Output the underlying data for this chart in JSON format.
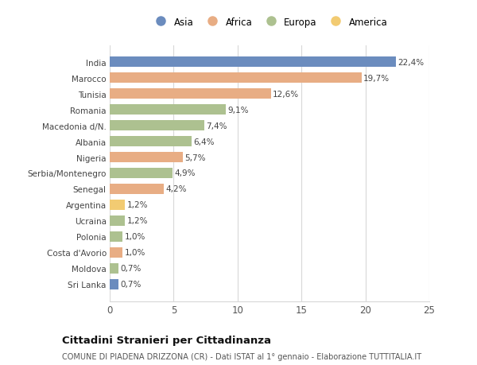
{
  "countries": [
    "India",
    "Marocco",
    "Tunisia",
    "Romania",
    "Macedonia d/N.",
    "Albania",
    "Nigeria",
    "Serbia/Montenegro",
    "Senegal",
    "Argentina",
    "Ucraina",
    "Polonia",
    "Costa d'Avorio",
    "Moldova",
    "Sri Lanka"
  ],
  "values": [
    22.4,
    19.7,
    12.6,
    9.1,
    7.4,
    6.4,
    5.7,
    4.9,
    4.2,
    1.2,
    1.2,
    1.0,
    1.0,
    0.7,
    0.7
  ],
  "labels": [
    "22,4%",
    "19,7%",
    "12,6%",
    "9,1%",
    "7,4%",
    "6,4%",
    "5,7%",
    "4,9%",
    "4,2%",
    "1,2%",
    "1,2%",
    "1,0%",
    "1,0%",
    "0,7%",
    "0,7%"
  ],
  "continents": [
    "Asia",
    "Africa",
    "Africa",
    "Europa",
    "Europa",
    "Europa",
    "Africa",
    "Europa",
    "Africa",
    "America",
    "Europa",
    "Europa",
    "Africa",
    "Europa",
    "Asia"
  ],
  "continent_colors": {
    "Asia": "#6b8cbe",
    "Africa": "#e8ad84",
    "Europa": "#adc190",
    "America": "#f2cb72"
  },
  "legend_order": [
    "Asia",
    "Africa",
    "Europa",
    "America"
  ],
  "title": "Cittadini Stranieri per Cittadinanza",
  "subtitle": "COMUNE DI PIADENA DRIZZONA (CR) - Dati ISTAT al 1° gennaio - Elaborazione TUTTITALIA.IT",
  "xlim": [
    0,
    25
  ],
  "xticks": [
    0,
    5,
    10,
    15,
    20,
    25
  ],
  "background_color": "#ffffff",
  "bar_height": 0.65,
  "grid_color": "#d8d8d8"
}
